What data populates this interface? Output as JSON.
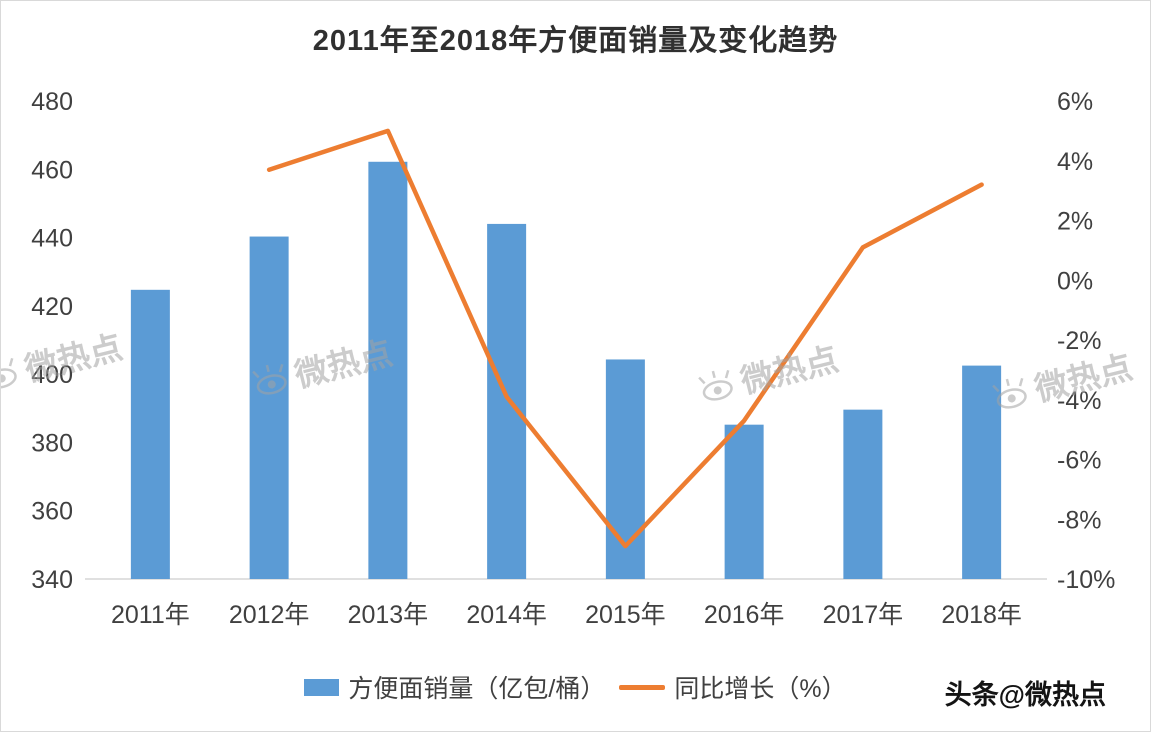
{
  "title": "2011年至2018年方便面销量及变化趋势",
  "credit": "头条@微热点",
  "watermark": {
    "text": "微热点"
  },
  "legend": [
    {
      "type": "bar",
      "label": "方便面销量（亿包/桶）",
      "color": "#5B9BD5"
    },
    {
      "type": "line",
      "label": "同比增长（%）",
      "color": "#ED7D31"
    }
  ],
  "chart_data": {
    "type": "combo-bar-line",
    "title": "2011年至2018年方便面销量及变化趋势",
    "categories": [
      "2011年",
      "2012年",
      "2013年",
      "2014年",
      "2015年",
      "2016年",
      "2017年",
      "2018年"
    ],
    "series": [
      {
        "name": "方便面销量（亿包/桶）",
        "type": "bar",
        "axis": "left",
        "color": "#5B9BD5",
        "values": [
          424.7,
          440.3,
          462.2,
          444.0,
          404.3,
          385.2,
          389.6,
          402.5
        ]
      },
      {
        "name": "同比增长（%）",
        "type": "line",
        "axis": "right",
        "color": "#ED7D31",
        "values": [
          null,
          3.7,
          5.0,
          -3.9,
          -8.9,
          -4.7,
          1.1,
          3.2
        ]
      }
    ],
    "left_axis": {
      "min": 340,
      "max": 480,
      "step": 20,
      "ticks": [
        480,
        460,
        440,
        420,
        400,
        380,
        360,
        340
      ]
    },
    "right_axis": {
      "min": -10,
      "max": 6,
      "step": 2,
      "tick_labels": [
        "6%",
        "4%",
        "2%",
        "0%",
        "-2%",
        "-4%",
        "-6%",
        "-8%",
        "-10%"
      ],
      "tick_values": [
        6,
        4,
        2,
        0,
        -2,
        -4,
        -6,
        -8,
        -10
      ]
    },
    "grid": false,
    "legend_position": "bottom"
  }
}
